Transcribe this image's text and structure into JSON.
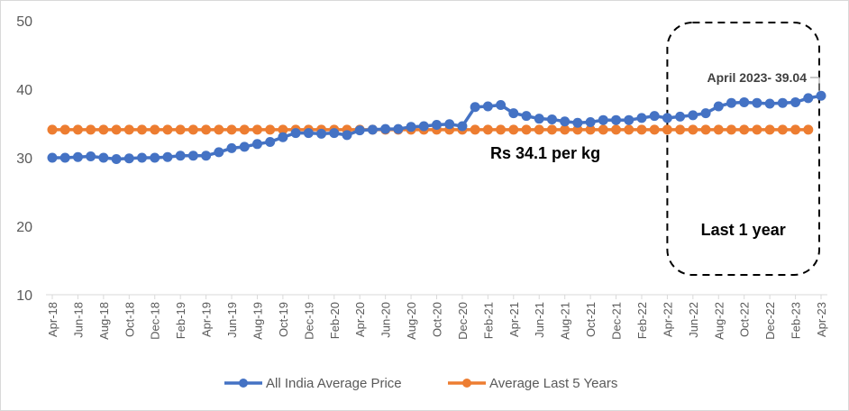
{
  "chart_data": {
    "type": "line",
    "title": "",
    "xlabel": "",
    "ylabel": "",
    "ylim": [
      10,
      50
    ],
    "yticks": [
      10,
      20,
      30,
      40,
      50
    ],
    "grid": false,
    "legend_position": "bottom",
    "x": [
      "Apr-18",
      "May-18",
      "Jun-18",
      "Jul-18",
      "Aug-18",
      "Sep-18",
      "Oct-18",
      "Nov-18",
      "Dec-18",
      "Jan-19",
      "Feb-19",
      "Mar-19",
      "Apr-19",
      "May-19",
      "Jun-19",
      "Jul-19",
      "Aug-19",
      "Sep-19",
      "Oct-19",
      "Nov-19",
      "Dec-19",
      "Jan-20",
      "Feb-20",
      "Mar-20",
      "Apr-20",
      "May-20",
      "Jun-20",
      "Jul-20",
      "Aug-20",
      "Sep-20",
      "Oct-20",
      "Nov-20",
      "Dec-20",
      "Jan-21",
      "Feb-21",
      "Mar-21",
      "Apr-21",
      "May-21",
      "Jun-21",
      "Jul-21",
      "Aug-21",
      "Sep-21",
      "Oct-21",
      "Nov-21",
      "Dec-21",
      "Jan-22",
      "Feb-22",
      "Mar-22",
      "Apr-22",
      "May-22",
      "Jun-22",
      "Jul-22",
      "Aug-22",
      "Sep-22",
      "Oct-22",
      "Nov-22",
      "Dec-22",
      "Jan-23",
      "Feb-23",
      "Mar-23",
      "Apr-23"
    ],
    "xtick_labels": [
      "Apr-18",
      "Jun-18",
      "Aug-18",
      "Oct-18",
      "Dec-18",
      "Feb-19",
      "Apr-19",
      "Jun-19",
      "Aug-19",
      "Oct-19",
      "Dec-19",
      "Feb-20",
      "Apr-20",
      "Jun-20",
      "Aug-20",
      "Oct-20",
      "Dec-20",
      "Feb-21",
      "Apr-21",
      "Jun-21",
      "Aug-21",
      "Oct-21",
      "Dec-21",
      "Feb-22",
      "Apr-22",
      "Jun-22",
      "Aug-22",
      "Oct-22",
      "Dec-22",
      "Feb-23",
      "Apr-23"
    ],
    "series": [
      {
        "name": "All India Average Price",
        "color": "#4472C4",
        "values": [
          30.0,
          30.0,
          30.1,
          30.2,
          30.0,
          29.8,
          29.9,
          30.0,
          30.0,
          30.1,
          30.3,
          30.3,
          30.3,
          30.8,
          31.4,
          31.6,
          32.0,
          32.3,
          33.0,
          33.6,
          33.6,
          33.5,
          33.6,
          33.3,
          34.0,
          34.1,
          34.2,
          34.2,
          34.5,
          34.6,
          34.8,
          34.9,
          34.6,
          37.4,
          37.5,
          37.7,
          36.5,
          36.1,
          35.7,
          35.6,
          35.3,
          35.1,
          35.2,
          35.5,
          35.5,
          35.5,
          35.8,
          36.1,
          35.8,
          36.0,
          36.2,
          36.5,
          37.5,
          38.0,
          38.1,
          38.0,
          37.9,
          38.0,
          38.1,
          38.7,
          39.04
        ]
      },
      {
        "name": "Average Last 5 Years",
        "color": "#ED7D31",
        "values": [
          34.1,
          34.1,
          34.1,
          34.1,
          34.1,
          34.1,
          34.1,
          34.1,
          34.1,
          34.1,
          34.1,
          34.1,
          34.1,
          34.1,
          34.1,
          34.1,
          34.1,
          34.1,
          34.1,
          34.1,
          34.1,
          34.1,
          34.1,
          34.1,
          34.1,
          34.1,
          34.1,
          34.1,
          34.1,
          34.1,
          34.1,
          34.1,
          34.1,
          34.1,
          34.1,
          34.1,
          34.1,
          34.1,
          34.1,
          34.1,
          34.1,
          34.1,
          34.1,
          34.1,
          34.1,
          34.1,
          34.1,
          34.1,
          34.1,
          34.1,
          34.1,
          34.1,
          34.1,
          34.1,
          34.1,
          34.1,
          34.1,
          34.1,
          34.1,
          34.1,
          null
        ]
      }
    ],
    "annotations": {
      "avg_label": "Rs 34.1 per kg",
      "last_point_label": "April 2023- 39.04",
      "highlight_box_label": "Last 1 year",
      "highlight_range": [
        "Apr-22",
        "Apr-23"
      ]
    }
  }
}
